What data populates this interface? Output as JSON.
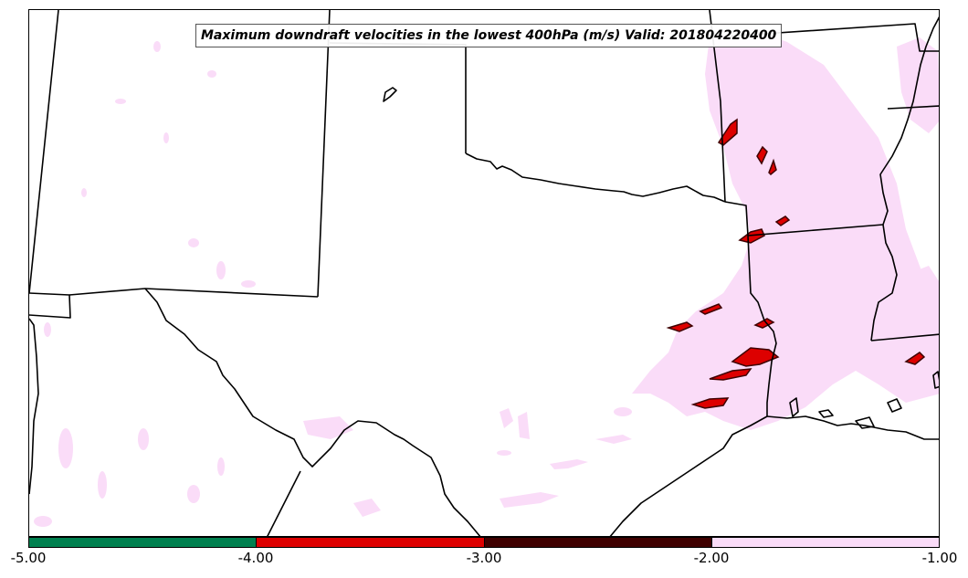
{
  "title": "Maximum downdraft velocities in the lowest 400hPa (m/s) Valid: 201804220400",
  "colorbar": {
    "ticks": [
      "-5.00",
      "-4.00",
      "-3.00",
      "-2.00",
      "-1.00"
    ],
    "segments": [
      {
        "range": [
          -5.0,
          -4.0
        ],
        "color": "#00804f"
      },
      {
        "range": [
          -4.0,
          -3.0
        ],
        "color": "#dd0000"
      },
      {
        "range": [
          -3.0,
          -2.0
        ],
        "color": "#3f0000"
      },
      {
        "range": [
          -2.0,
          -1.0
        ],
        "color": "#fadcf8"
      }
    ]
  },
  "colors": {
    "background": "#ffffff",
    "boundary": "#000000",
    "light_shading": "#fadcf8",
    "strong_shading": "#dd0000",
    "outline": "#3f0000"
  }
}
